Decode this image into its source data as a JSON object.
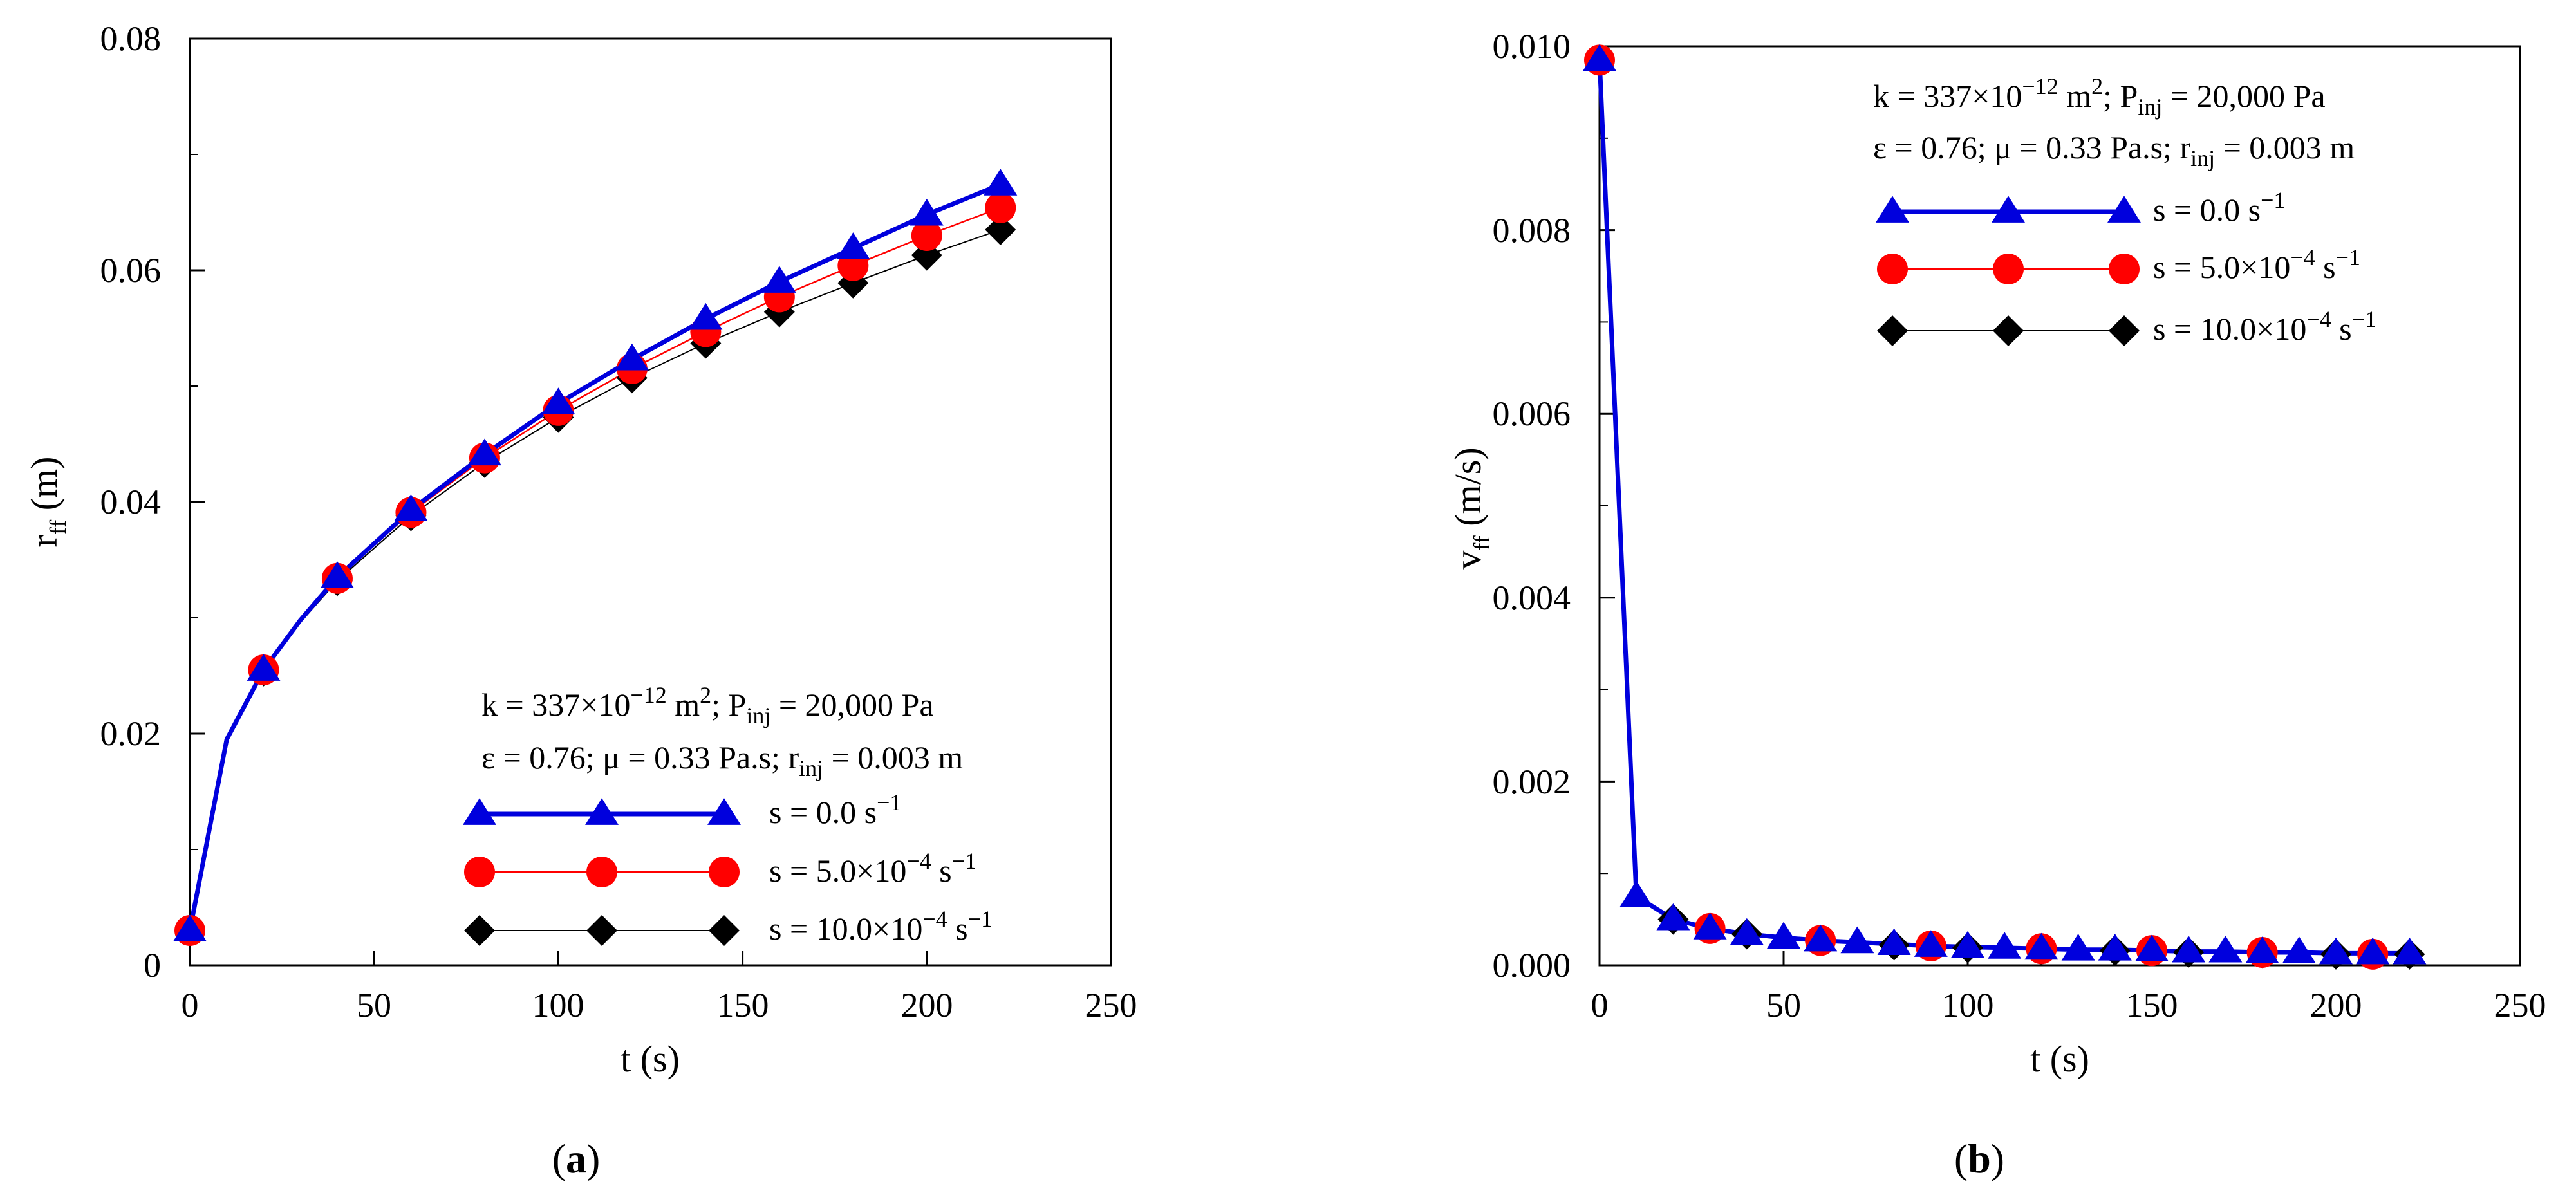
{
  "chart_data": [
    {
      "id": "a",
      "type": "line",
      "panel_label": "a",
      "xlabel": "t (s)",
      "ylabel": {
        "main": "r",
        "sub": "ff",
        "unit": " (m)"
      },
      "xlim": [
        0,
        250
      ],
      "ylim": [
        0,
        0.08
      ],
      "xticks": [
        0,
        50,
        100,
        150,
        200,
        250
      ],
      "xtick_labels": [
        "0",
        "50",
        "100",
        "150",
        "200",
        "250"
      ],
      "yticks": [
        0,
        0.02,
        0.04,
        0.06,
        0.08
      ],
      "ytick_labels": [
        "0",
        "0.02",
        "0.04",
        "0.06",
        "0.08"
      ],
      "legend_position": "lower-right",
      "annotation": {
        "line1": {
          "a": "k = 337×10",
          "a_sup": "−12",
          "b": " m",
          "b_sup": "2",
          "c": ";  P",
          "c_sub": "inj",
          "d": " = 20,000 Pa"
        },
        "line2": {
          "a": "ε = 0.76; μ = 0.33 Pa.s; r",
          "a_sub": "inj",
          "b": " = 0.003 m"
        }
      },
      "series": [
        {
          "name": "s = 0.0 s−1",
          "label_main": "s = 0.0 s",
          "label_sup": "−1",
          "color": "#0000dd",
          "marker": "triangle",
          "x": [
            0,
            10,
            20,
            30,
            40,
            60,
            80,
            100,
            120,
            140,
            160,
            180,
            200,
            220
          ],
          "y": [
            0.003,
            0.0195,
            0.0255,
            0.0298,
            0.0335,
            0.0393,
            0.0441,
            0.0485,
            0.0523,
            0.0558,
            0.059,
            0.0619,
            0.0648,
            0.0674
          ],
          "marker_x": [
            0,
            20,
            40,
            60,
            80,
            100,
            120,
            140,
            160,
            180,
            200,
            220
          ]
        },
        {
          "name": "s = 5.0×10−4 s−1",
          "label_main": "s = 5.0×10",
          "label_sup": "−4",
          "label_tail": " s",
          "label_sup2": "−1",
          "color": "#ff0000",
          "marker": "circle",
          "x": [
            0,
            10,
            20,
            30,
            40,
            60,
            80,
            100,
            120,
            140,
            160,
            180,
            200,
            220
          ],
          "y": [
            0.003,
            0.0195,
            0.0255,
            0.0297,
            0.0334,
            0.0391,
            0.0438,
            0.0479,
            0.0515,
            0.0547,
            0.0577,
            0.0604,
            0.063,
            0.0654
          ],
          "marker_x": [
            0,
            20,
            40,
            60,
            80,
            100,
            120,
            140,
            160,
            180,
            200,
            220
          ]
        },
        {
          "name": "s = 10.0×10−4 s−1",
          "label_main": "s = 10.0×10",
          "label_sup": "−4",
          "label_tail": " s",
          "label_sup2": "−1",
          "color": "#000000",
          "marker": "diamond",
          "x": [
            0,
            10,
            20,
            30,
            40,
            60,
            80,
            100,
            120,
            140,
            160,
            180,
            200,
            220
          ],
          "y": [
            0.003,
            0.0195,
            0.0254,
            0.0296,
            0.0332,
            0.0388,
            0.0434,
            0.0473,
            0.0507,
            0.0537,
            0.0564,
            0.0589,
            0.0613,
            0.0635
          ],
          "marker_x": [
            0,
            20,
            40,
            60,
            80,
            100,
            120,
            140,
            160,
            180,
            200,
            220
          ]
        }
      ]
    },
    {
      "id": "b",
      "type": "line",
      "panel_label": "b",
      "xlabel": "t (s)",
      "ylabel": {
        "main": "v",
        "sub": "ff",
        "unit": " (m/s)"
      },
      "xlim": [
        0,
        250
      ],
      "ylim": [
        0,
        0.01
      ],
      "xticks": [
        0,
        50,
        100,
        150,
        200,
        250
      ],
      "xtick_labels": [
        "0",
        "50",
        "100",
        "150",
        "200",
        "250"
      ],
      "yticks": [
        0,
        0.002,
        0.004,
        0.006,
        0.008,
        0.01
      ],
      "ytick_labels": [
        "0.000",
        "0.002",
        "0.004",
        "0.006",
        "0.008",
        "0.010"
      ],
      "legend_position": "top-right",
      "annotation": {
        "line1": {
          "a": "k = 337×10",
          "a_sup": "−12",
          "b": " m",
          "b_sup": "2",
          "c": "; P",
          "c_sub": "inj",
          "d": " = 20,000 Pa"
        },
        "line2": {
          "a": "ε = 0.76; μ = 0.33 Pa.s; r",
          "a_sub": "inj",
          "b": " = 0.003 m"
        }
      },
      "series": [
        {
          "name": "s = 0.0 s−1",
          "label_main": "s = 0.0 s",
          "label_sup": "−1",
          "color": "#0000dd",
          "marker": "triangle",
          "x": [
            0,
            10,
            20,
            30,
            40,
            50,
            60,
            70,
            80,
            90,
            100,
            110,
            120,
            130,
            140,
            150,
            160,
            170,
            180,
            190,
            200,
            210,
            220
          ],
          "y": [
            0.00985,
            0.00075,
            0.0005,
            0.0004,
            0.00034,
            0.0003,
            0.00027,
            0.00025,
            0.00023,
            0.00021,
            0.0002,
            0.00019,
            0.00018,
            0.00017,
            0.00017,
            0.00016,
            0.00015,
            0.00015,
            0.00014,
            0.00014,
            0.00013,
            0.00013,
            0.00013
          ],
          "marker_x": [
            0,
            10,
            20,
            30,
            40,
            50,
            60,
            70,
            80,
            90,
            100,
            110,
            120,
            130,
            140,
            150,
            160,
            170,
            180,
            190,
            200,
            210,
            220
          ]
        },
        {
          "name": "s = 5.0×10−4 s−1",
          "label_main": "s = 5.0×10",
          "label_sup": "−4",
          "label_tail": " s",
          "label_sup2": "−1",
          "color": "#ff0000",
          "marker": "circle",
          "x": [
            0,
            10,
            20,
            30,
            40,
            50,
            60,
            70,
            80,
            90,
            100,
            110,
            120,
            130,
            140,
            150,
            160,
            170,
            180,
            190,
            200,
            210,
            220
          ],
          "y": [
            0.00985,
            0.00075,
            0.0005,
            0.0004,
            0.00034,
            0.0003,
            0.00027,
            0.00025,
            0.00023,
            0.00021,
            0.0002,
            0.00019,
            0.00018,
            0.00017,
            0.00016,
            0.00016,
            0.00015,
            0.00014,
            0.00014,
            0.00013,
            0.00013,
            0.00012,
            0.00012
          ],
          "marker_x": [
            0,
            30,
            60,
            90,
            120,
            150,
            180,
            210
          ]
        },
        {
          "name": "s = 10.0×10−4 s−1",
          "label_main": "s = 10.0×10",
          "label_sup": "−4",
          "label_tail": " s",
          "label_sup2": "−1",
          "color": "#000000",
          "marker": "diamond",
          "x": [
            0,
            10,
            20,
            30,
            40,
            50,
            60,
            70,
            80,
            90,
            100,
            110,
            120,
            130,
            140,
            150,
            160,
            170,
            180,
            190,
            200,
            210,
            220
          ],
          "y": [
            0.00985,
            0.00075,
            0.0005,
            0.0004,
            0.00034,
            0.0003,
            0.00027,
            0.00024,
            0.00022,
            0.00021,
            0.00019,
            0.00018,
            0.00017,
            0.00016,
            0.00016,
            0.00015,
            0.00014,
            0.00014,
            0.00013,
            0.00013,
            0.00012,
            0.00012,
            0.00012
          ],
          "marker_x": [
            0,
            20,
            40,
            60,
            80,
            100,
            120,
            140,
            160,
            180,
            200,
            220
          ]
        }
      ]
    }
  ]
}
